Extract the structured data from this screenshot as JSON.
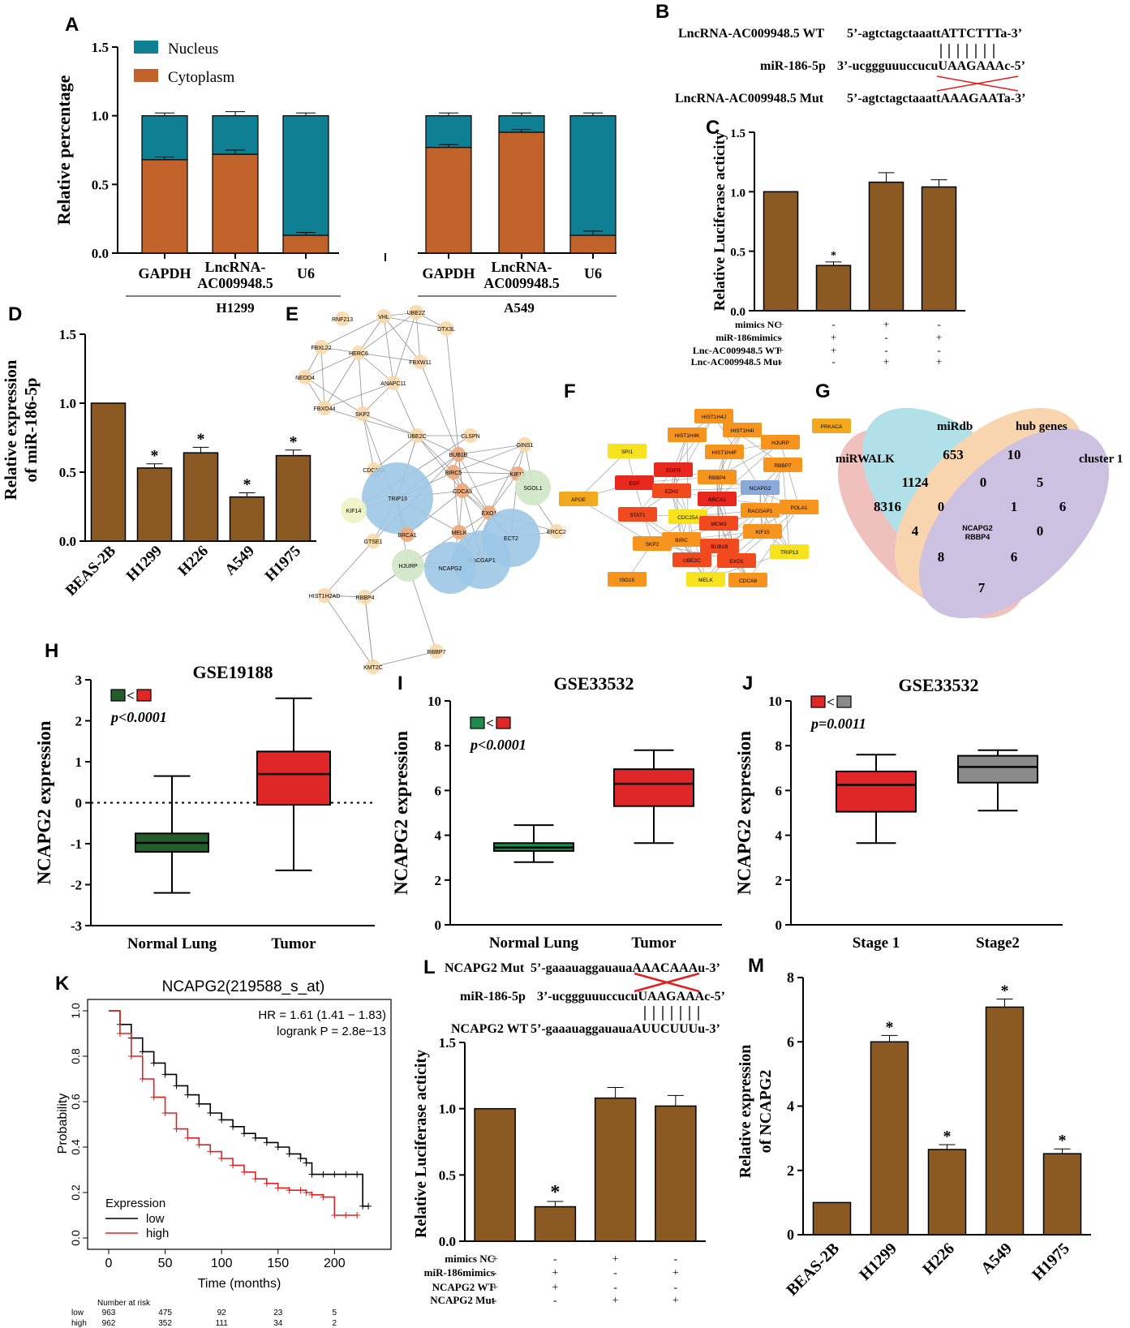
{
  "colors": {
    "bar_brown": "#8a5a22",
    "nucleus": "#0f7f93",
    "cytoplasm": "#c0622a",
    "normal_green": "#245c2c",
    "tumor_red": "#e02727",
    "stage2_gray": "#8a8a8a",
    "km_low": "#000000",
    "km_high": "#e02020"
  },
  "panel_letters": {
    "A": "A",
    "B": "B",
    "C": "C",
    "D": "D",
    "E": "E",
    "F": "F",
    "G": "G",
    "H": "H",
    "I": "I",
    "J": "J",
    "K": "K",
    "L": "L",
    "M": "M"
  },
  "panel_b": {
    "wt_label": "LncRNA-AC009948.5 WT",
    "wt_seq": "5’-agtctagctaaattATTCTTTa-3’",
    "mir_label": "miR-186-5p",
    "mir_seq": "3’-ucggguuuccucuUAAGAAAc-5’",
    "mut_label": "LncRNA-AC009948.5 Mut",
    "mut_seq": "5’-agtctagctaaattAAAGAATa-3’"
  },
  "panel_l_seq": {
    "mut_label": "NCAPG2 Mut",
    "mut_seq": "5’-gaaauaggauauaAAACAAAu-3’",
    "mir_label": "miR-186-5p",
    "mir_seq": "3’-ucggguuuccucuUAAGAAAc-5’",
    "wt_label": "NCAPG2 WT",
    "wt_seq": "5’-gaaauaggauauaAUUCUUUu-3’"
  },
  "network_e_nodes": [
    "RNF213",
    "VHL",
    "UBE2Z",
    "DTX3L",
    "FBXL22",
    "HERC6",
    "FBXW11",
    "NEDD4",
    "ANAPC11",
    "FBXO44",
    "SKP2",
    "UBE2C",
    "CLSPN",
    "GINS1",
    "BUB1B",
    "CDC25A",
    "BIRC5",
    "KIF15",
    "SGOL1",
    "TRIP13",
    "CDCA3",
    "KIF14",
    "EXO1",
    "ECT2",
    "BRCA1",
    "ERCC2",
    "MELK",
    "GTSE1",
    "RACGAP1",
    "HJURP",
    "NCAPG2",
    "HIST1H2AD",
    "RBBP4",
    "RBBP7",
    "KMT2C"
  ],
  "network_f_nodes": [
    "HIST1H4J",
    "HIST1H4I",
    "HIST1H4K",
    "HJURP",
    "PRKACA",
    "SPI1",
    "EGFR",
    "HIST1H4F",
    "RBBP7",
    "EGF",
    "EZH2",
    "RBBP4",
    "NCAPG2",
    "APOE",
    "STAT1",
    "BRCA1",
    "RACGAP1",
    "POLA1",
    "CDC25A",
    "MCM3",
    "KIF15",
    "SKP2",
    "BIRC",
    "BUB1B",
    "TRIP13",
    "ISG15",
    "UBE2C",
    "EXO1",
    "MELK",
    "CDCA8"
  ],
  "venn_g": {
    "sets": [
      "miRWALK",
      "miRdb",
      "hub genes",
      "cluster 1"
    ],
    "counts": [
      "653",
      "10",
      "1124",
      "0",
      "5",
      "8316",
      "0",
      "1",
      "6",
      "4",
      "0",
      "8",
      "6",
      "7"
    ],
    "center": "NCAPG2\nRBBP4",
    "center_line1": "NCAPG2",
    "center_line2": "RBBP4"
  },
  "chart_data": [
    {
      "id": "A",
      "type": "bar",
      "ylabel": "Relative percentage",
      "ylim": [
        0,
        1.5
      ],
      "yticks": [
        "0.0",
        "0.5",
        "1.0",
        "1.5"
      ],
      "legend": [
        "Nucleus",
        "Cytoplasm"
      ],
      "groups": [
        "H1299",
        "A549"
      ],
      "categories": [
        "GAPDH",
        "LncRNA-AC009948.5",
        "U6",
        "GAPDH",
        "LncRNA-AC009948.5",
        "U6"
      ],
      "series": [
        {
          "name": "Cytoplasm",
          "values": [
            0.68,
            0.72,
            0.13,
            0.77,
            0.88,
            0.13
          ],
          "errors": [
            0.02,
            0.03,
            0.02,
            0.02,
            0.02,
            0.03
          ]
        },
        {
          "name": "Nucleus",
          "values": [
            0.32,
            0.28,
            0.87,
            0.23,
            0.12,
            0.87
          ],
          "errors": [
            0.02,
            0.03,
            0.02,
            0.02,
            0.02,
            0.02
          ]
        }
      ]
    },
    {
      "id": "C",
      "type": "bar",
      "ylabel": "Relative Luciferase acticity",
      "ylim": [
        0,
        1.5
      ],
      "yticks": [
        "0.0",
        "0.5",
        "1.0",
        "1.5"
      ],
      "values": [
        1.0,
        0.38,
        1.08,
        1.04
      ],
      "errors": [
        0,
        0.03,
        0.08,
        0.06
      ],
      "sig": [
        "",
        "*",
        "",
        ""
      ],
      "conditions": [
        {
          "label": "mimics NC",
          "signs": [
            "+",
            "-",
            "+",
            "-"
          ]
        },
        {
          "label": "miR-186mimics",
          "signs": [
            "-",
            "+",
            "-",
            "+"
          ]
        },
        {
          "label": "Lnc-AC009948.5 WT",
          "signs": [
            "+",
            "+",
            "-",
            "-"
          ]
        },
        {
          "label": "Lnc-AC009948.5 Mut",
          "signs": [
            "-",
            "-",
            "+",
            "+"
          ]
        }
      ]
    },
    {
      "id": "D",
      "type": "bar",
      "ylabel": "Relative expression",
      "ylabel2": "of miR-186-5p",
      "ylim": [
        0,
        1.5
      ],
      "yticks": [
        "0.0",
        "0.5",
        "1.0",
        "1.5"
      ],
      "categories": [
        "BEAS-2B",
        "H1299",
        "H226",
        "A549",
        "H1975"
      ],
      "values": [
        1.0,
        0.53,
        0.64,
        0.32,
        0.62
      ],
      "errors": [
        0,
        0.03,
        0.04,
        0.03,
        0.04
      ],
      "sig": [
        "",
        "*",
        "*",
        "*",
        "*"
      ]
    },
    {
      "id": "H",
      "type": "box",
      "title": "GSE19188",
      "ylabel": "NCAPG2 expression",
      "ylim": [
        -3,
        3
      ],
      "yticks": [
        "-3",
        "-2",
        "-1",
        "0",
        "1",
        "2",
        "3"
      ],
      "pvalue": "p<0.0001",
      "compare": "<",
      "categories": [
        "Normal Lung",
        "Tumor"
      ],
      "boxes": [
        {
          "min": -2.2,
          "q1": -1.2,
          "median": -0.98,
          "q3": -0.75,
          "max": 0.65,
          "color": "#245c2c"
        },
        {
          "min": -1.65,
          "q1": -0.05,
          "median": 0.7,
          "q3": 1.25,
          "max": 2.55,
          "color": "#e02727"
        }
      ]
    },
    {
      "id": "I",
      "type": "box",
      "title": "GSE33532",
      "ylabel": "NCAPG2 expression",
      "ylim": [
        0,
        10
      ],
      "yticks": [
        "0",
        "2",
        "4",
        "6",
        "8",
        "10"
      ],
      "pvalue": "p<0.0001",
      "compare": "<",
      "categories": [
        "Normal Lung",
        "Tumor"
      ],
      "boxes": [
        {
          "min": 2.8,
          "q1": 3.3,
          "median": 3.45,
          "q3": 3.65,
          "max": 4.45,
          "color": "#1e8a4c"
        },
        {
          "min": 3.65,
          "q1": 5.3,
          "median": 6.3,
          "q3": 6.95,
          "max": 7.8,
          "color": "#e02727"
        }
      ]
    },
    {
      "id": "J",
      "type": "box",
      "title": "GSE33532",
      "ylabel": "NCAPG2 expression",
      "ylim": [
        0,
        10
      ],
      "yticks": [
        "0",
        "2",
        "4",
        "6",
        "8",
        "10"
      ],
      "pvalue": "p=0.0011",
      "compare": "<",
      "categories": [
        "Stage 1",
        "Stage2"
      ],
      "boxes": [
        {
          "min": 3.65,
          "q1": 5.05,
          "median": 6.25,
          "q3": 6.85,
          "max": 7.6,
          "color": "#e02727"
        },
        {
          "min": 5.1,
          "q1": 6.35,
          "median": 7.05,
          "q3": 7.55,
          "max": 7.8,
          "color": "#8a8a8a"
        }
      ]
    },
    {
      "id": "K",
      "type": "line",
      "title": "NCAPG2(219588_s_at)",
      "xlabel": "Time (months)",
      "ylabel": "Probability",
      "xlim": [
        0,
        240
      ],
      "ylim": [
        0,
        1.0
      ],
      "xticks": [
        "0",
        "50",
        "100",
        "150",
        "200"
      ],
      "yticks": [
        "0.0",
        "0.2",
        "0.4",
        "0.6",
        "0.8",
        "1.0"
      ],
      "hr": "HR = 1.61 (1.41 − 1.83)",
      "logrank": "logrank P = 2.8e−13",
      "legend_title": "Expression",
      "number_at_risk_label": "Number at risk",
      "series": [
        {
          "name": "low",
          "color": "#000000",
          "x": [
            0,
            10,
            20,
            30,
            40,
            50,
            60,
            70,
            80,
            90,
            100,
            110,
            120,
            130,
            140,
            150,
            160,
            170,
            175,
            180,
            190,
            200,
            210,
            220,
            225,
            230
          ],
          "y": [
            1.0,
            0.94,
            0.88,
            0.82,
            0.77,
            0.72,
            0.67,
            0.63,
            0.59,
            0.55,
            0.52,
            0.49,
            0.46,
            0.44,
            0.42,
            0.4,
            0.37,
            0.35,
            0.33,
            0.28,
            0.28,
            0.28,
            0.28,
            0.28,
            0.14,
            0.14
          ]
        },
        {
          "name": "high",
          "color": "#e02020",
          "x": [
            0,
            10,
            20,
            30,
            40,
            50,
            60,
            70,
            80,
            90,
            100,
            110,
            120,
            130,
            140,
            150,
            160,
            170,
            175,
            180,
            190,
            200,
            210,
            220
          ],
          "y": [
            1.0,
            0.9,
            0.8,
            0.7,
            0.62,
            0.55,
            0.48,
            0.44,
            0.41,
            0.38,
            0.35,
            0.32,
            0.29,
            0.26,
            0.24,
            0.22,
            0.21,
            0.21,
            0.2,
            0.19,
            0.18,
            0.1,
            0.1,
            0.1
          ]
        }
      ],
      "risk_table": [
        {
          "name": "low",
          "values": [
            "963",
            "475",
            "92",
            "23",
            "5"
          ]
        },
        {
          "name": "high",
          "values": [
            "962",
            "352",
            "111",
            "34",
            "2"
          ]
        }
      ]
    },
    {
      "id": "L",
      "type": "bar",
      "ylabel": "Relative Luciferase acticity",
      "ylim": [
        0,
        1.5
      ],
      "yticks": [
        "0.0",
        "0.5",
        "1.0",
        "1.5"
      ],
      "values": [
        1.0,
        0.26,
        1.08,
        1.02
      ],
      "errors": [
        0,
        0.04,
        0.08,
        0.08
      ],
      "sig": [
        "",
        "*",
        "",
        ""
      ],
      "conditions": [
        {
          "label": "mimics NC",
          "signs": [
            "+",
            "-",
            "+",
            "-"
          ]
        },
        {
          "label": "miR-186mimics",
          "signs": [
            "-",
            "+",
            "-",
            "+"
          ]
        },
        {
          "label": "NCAPG2 WT",
          "signs": [
            "+",
            "+",
            "-",
            "-"
          ]
        },
        {
          "label": "NCAPG2 Mut",
          "signs": [
            "-",
            "-",
            "+",
            "+"
          ]
        }
      ]
    },
    {
      "id": "M",
      "type": "bar",
      "ylabel": "Relative expression",
      "ylabel2": "of NCAPG2",
      "ylim": [
        0,
        8
      ],
      "yticks": [
        "0",
        "2",
        "4",
        "6",
        "8"
      ],
      "categories": [
        "BEAS-2B",
        "H1299",
        "H226",
        "A549",
        "H1975"
      ],
      "values": [
        1.0,
        6.0,
        2.65,
        7.08,
        2.52
      ],
      "errors": [
        0,
        0.2,
        0.15,
        0.25,
        0.15
      ],
      "sig": [
        "",
        "*",
        "*",
        "*",
        "*"
      ]
    }
  ]
}
